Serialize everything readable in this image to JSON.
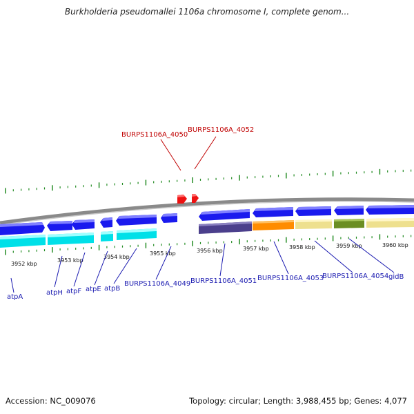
{
  "title": "Burkholderia pseudomallei 1106a chromosome I, complete genom...",
  "footer": {
    "accession": "Accession: NC_009076",
    "summary": "Topology: circular; Length: 3,988,455 bp; Genes: 4,077"
  },
  "colors": {
    "gene_forward": "#1a1aee",
    "gene_highlight": "#ee1111",
    "label_blue": "#1a1ab0",
    "label_red": "#c00000",
    "tick_green": "#228b22",
    "track_cyan": "#00e0e8",
    "track_purple": "#4b3f8c",
    "track_orange": "#ff8c00",
    "track_khaki": "#eee08e",
    "track_olive": "#6b8e23"
  },
  "position_labels": [
    "3952 kbp",
    "3953 kbp",
    "3954 kbp",
    "3955 kbp",
    "3956 kbp",
    "3957 kbp",
    "3958 kbp",
    "3959 kbp",
    "3960 kbp"
  ],
  "genes_bottom": [
    "atpA",
    "atpH",
    "atpF",
    "atpE",
    "atpB",
    "BURPS1106A_4049",
    "BURPS1106A_4051",
    "BURPS1106A_4053",
    "BURPS1106A_4054",
    "gidB"
  ],
  "genes_top": [
    "BURPS1106A_4050",
    "BURPS1106A_4052"
  ],
  "icons": {
    "gene_arrow": "arrow-right-shape",
    "tick": "vertical-line"
  }
}
